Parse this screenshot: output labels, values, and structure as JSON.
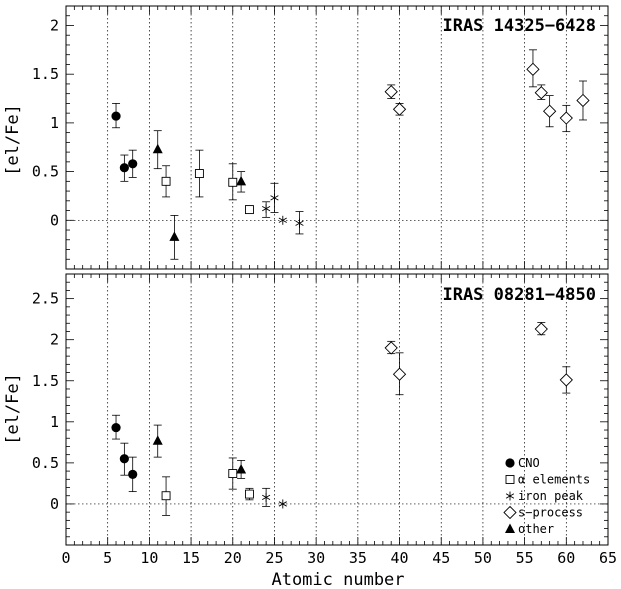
{
  "chart_data": [
    {
      "type": "scatter",
      "title": "IRAS 14325−6428",
      "xlabel": "",
      "ylabel": "[el/Fe]",
      "xlim": [
        0,
        65
      ],
      "ylim": [
        -0.5,
        2.2
      ],
      "x_ticks": [
        "0",
        "5",
        "10",
        "15",
        "20",
        "25",
        "30",
        "35",
        "40",
        "45",
        "50",
        "55",
        "60",
        "65"
      ],
      "y_ticks": [
        {
          "value": 0,
          "label": "0"
        },
        {
          "value": 0.5,
          "label": "0.5"
        },
        {
          "value": 1,
          "label": "1"
        },
        {
          "value": 1.5,
          "label": "1.5"
        },
        {
          "value": 2,
          "label": "2"
        }
      ],
      "grid": "vertical dotted lines every 5 units; horizontal dotted line at y=0",
      "series": [
        {
          "group": "CNO",
          "marker": "filled-hexagon",
          "points": [
            {
              "x": 6,
              "y": 1.07,
              "lo": 0.95,
              "hi": 1.2
            },
            {
              "x": 7,
              "y": 0.54,
              "lo": 0.4,
              "hi": 0.67
            },
            {
              "x": 8,
              "y": 0.58,
              "lo": 0.44,
              "hi": 0.72
            }
          ]
        },
        {
          "group": "alpha elements",
          "marker": "open-square",
          "points": [
            {
              "x": 12,
              "y": 0.4,
              "lo": 0.24,
              "hi": 0.56
            },
            {
              "x": 16,
              "y": 0.48,
              "lo": 0.24,
              "hi": 0.72
            },
            {
              "x": 20,
              "y": 0.39,
              "lo": 0.21,
              "hi": 0.58
            },
            {
              "x": 22,
              "y": 0.11,
              "lo": 0.08,
              "hi": 0.14
            }
          ]
        },
        {
          "group": "iron peak",
          "marker": "asterisk",
          "points": [
            {
              "x": 24,
              "y": 0.12,
              "lo": 0.03,
              "hi": 0.19
            },
            {
              "x": 25,
              "y": 0.23,
              "lo": 0.08,
              "hi": 0.38
            },
            {
              "x": 26,
              "y": 0.0,
              "lo": 0.0,
              "hi": 0.0
            },
            {
              "x": 28,
              "y": -0.03,
              "lo": -0.14,
              "hi": 0.09
            }
          ]
        },
        {
          "group": "s-process",
          "marker": "open-diamond",
          "points": [
            {
              "x": 39,
              "y": 1.32,
              "lo": 1.25,
              "hi": 1.39
            },
            {
              "x": 40,
              "y": 1.14,
              "lo": 1.08,
              "hi": 1.2
            },
            {
              "x": 56,
              "y": 1.55,
              "lo": 1.37,
              "hi": 1.75
            },
            {
              "x": 57,
              "y": 1.31,
              "lo": 1.24,
              "hi": 1.39
            },
            {
              "x": 58,
              "y": 1.12,
              "lo": 0.96,
              "hi": 1.28
            },
            {
              "x": 60,
              "y": 1.05,
              "lo": 0.91,
              "hi": 1.18
            },
            {
              "x": 62,
              "y": 1.23,
              "lo": 1.03,
              "hi": 1.43
            }
          ]
        },
        {
          "group": "other",
          "marker": "filled-triangle",
          "points": [
            {
              "x": 11,
              "y": 0.73,
              "lo": 0.53,
              "hi": 0.92
            },
            {
              "x": 13,
              "y": -0.17,
              "lo": -0.4,
              "hi": 0.05
            },
            {
              "x": 21,
              "y": 0.4,
              "lo": 0.29,
              "hi": 0.5
            }
          ]
        }
      ]
    },
    {
      "type": "scatter",
      "title": "IRAS 08281−4850",
      "xlabel": "Atomic number",
      "ylabel": "[el/Fe]",
      "xlim": [
        0,
        65
      ],
      "ylim": [
        -0.5,
        2.8
      ],
      "x_ticks": [
        "0",
        "5",
        "10",
        "15",
        "20",
        "25",
        "30",
        "35",
        "40",
        "45",
        "50",
        "55",
        "60",
        "65"
      ],
      "y_ticks": [
        {
          "value": 0,
          "label": "0"
        },
        {
          "value": 0.5,
          "label": "0.5"
        },
        {
          "value": 1,
          "label": "1"
        },
        {
          "value": 1.5,
          "label": "1.5"
        },
        {
          "value": 2,
          "label": "2"
        },
        {
          "value": 2.5,
          "label": "2.5"
        }
      ],
      "grid": "vertical dotted lines every 5 units; horizontal dotted line at y=0",
      "legend": {
        "placement": "bottom-right",
        "entries": [
          {
            "marker": "filled-hexagon",
            "label": "CNO"
          },
          {
            "marker": "open-square",
            "label": "α elements"
          },
          {
            "marker": "asterisk",
            "label": "iron peak"
          },
          {
            "marker": "open-diamond",
            "label": "s−process"
          },
          {
            "marker": "filled-triangle",
            "label": "other"
          }
        ]
      },
      "series": [
        {
          "group": "CNO",
          "marker": "filled-hexagon",
          "points": [
            {
              "x": 6,
              "y": 0.93,
              "lo": 0.79,
              "hi": 1.08
            },
            {
              "x": 7,
              "y": 0.55,
              "lo": 0.35,
              "hi": 0.74
            },
            {
              "x": 8,
              "y": 0.36,
              "lo": 0.15,
              "hi": 0.57
            }
          ]
        },
        {
          "group": "alpha elements",
          "marker": "open-square",
          "points": [
            {
              "x": 12,
              "y": 0.1,
              "lo": -0.14,
              "hi": 0.33
            },
            {
              "x": 20,
              "y": 0.37,
              "lo": 0.18,
              "hi": 0.56
            },
            {
              "x": 22,
              "y": 0.12,
              "lo": 0.05,
              "hi": 0.19
            }
          ]
        },
        {
          "group": "iron peak",
          "marker": "asterisk",
          "points": [
            {
              "x": 24,
              "y": 0.08,
              "lo": -0.03,
              "hi": 0.19
            },
            {
              "x": 26,
              "y": 0.0,
              "lo": 0.0,
              "hi": 0.0
            }
          ]
        },
        {
          "group": "s-process",
          "marker": "open-diamond",
          "points": [
            {
              "x": 39,
              "y": 1.9,
              "lo": 1.83,
              "hi": 1.98
            },
            {
              "x": 40,
              "y": 1.58,
              "lo": 1.33,
              "hi": 1.84
            },
            {
              "x": 57,
              "y": 2.13,
              "lo": 2.06,
              "hi": 2.21
            },
            {
              "x": 60,
              "y": 1.51,
              "lo": 1.35,
              "hi": 1.67
            }
          ]
        },
        {
          "group": "other",
          "marker": "filled-triangle",
          "points": [
            {
              "x": 11,
              "y": 0.77,
              "lo": 0.57,
              "hi": 0.96
            },
            {
              "x": 21,
              "y": 0.42,
              "lo": 0.31,
              "hi": 0.53
            }
          ]
        }
      ]
    }
  ]
}
